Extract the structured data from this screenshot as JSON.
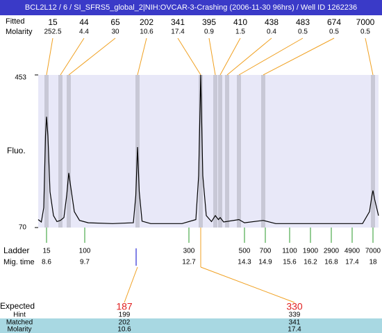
{
  "chart_data": {
    "type": "line",
    "title": "BCL2L12 / 6 / SI_SFRS5_global_2|NIH:OVCAR-3-Crashing (2006-11-30 96hrs) / Well ID 1262236",
    "ylabel": "Fluo.",
    "ylim": [
      70,
      453
    ],
    "yticks": [
      70,
      453
    ],
    "xlim": [
      8.36,
      18.16
    ],
    "color": "#000000",
    "x": [
      8.36,
      8.45,
      8.52,
      8.57,
      8.6,
      8.64,
      8.7,
      8.8,
      8.9,
      9.0,
      9.1,
      9.18,
      9.24,
      9.3,
      9.4,
      9.55,
      9.8,
      10.5,
      11.1,
      11.17,
      11.22,
      11.27,
      11.35,
      11.6,
      12.5,
      12.9,
      12.98,
      13.04,
      13.1,
      13.2,
      13.35,
      13.46,
      13.55,
      13.6,
      13.7,
      14.14,
      14.3,
      14.84,
      15.2,
      17.7,
      17.9,
      17.97,
      18.0,
      18.05,
      18.16
    ],
    "values": [
      90,
      84,
      120,
      300,
      348,
      300,
      160,
      100,
      85,
      88,
      95,
      150,
      207,
      170,
      110,
      88,
      82,
      80,
      82,
      150,
      272,
      160,
      86,
      80,
      80,
      90,
      200,
      453,
      200,
      100,
      85,
      100,
      90,
      95,
      84,
      90,
      82,
      88,
      80,
      80,
      110,
      150,
      163,
      140,
      100
    ],
    "peaks": {
      "size_label": "Fitted",
      "molarity_label": "Molarity",
      "sizes": [
        15,
        44,
        65,
        202,
        341,
        395,
        410,
        438,
        483,
        674,
        7000
      ],
      "molarity": [
        252.5,
        4.4,
        30,
        10.6,
        17.4,
        0.9,
        1.5,
        0.4,
        0.5,
        0.5,
        0.5
      ],
      "times": [
        8.6,
        9.0,
        9.24,
        11.22,
        13.04,
        13.46,
        13.6,
        13.8,
        14.14,
        14.84,
        18.0
      ]
    },
    "ladder": {
      "label": "Ladder",
      "time_label": "Mig. time",
      "sizes": [
        15,
        100,
        300,
        500,
        700,
        1100,
        1900,
        2900,
        4900,
        7000
      ],
      "times": [
        8.6,
        9.7,
        12.7,
        14.3,
        14.9,
        15.6,
        16.2,
        16.8,
        17.4,
        18
      ]
    },
    "expected": {
      "label": "Expected",
      "values": [
        187,
        330
      ]
    },
    "hint": {
      "label": "Hint",
      "values": [
        199,
        339
      ]
    },
    "matched": {
      "label": "Matched",
      "values": [
        202,
        341
      ]
    },
    "molarity": {
      "label": "Molarity",
      "values": [
        10.6,
        17.4
      ]
    }
  }
}
